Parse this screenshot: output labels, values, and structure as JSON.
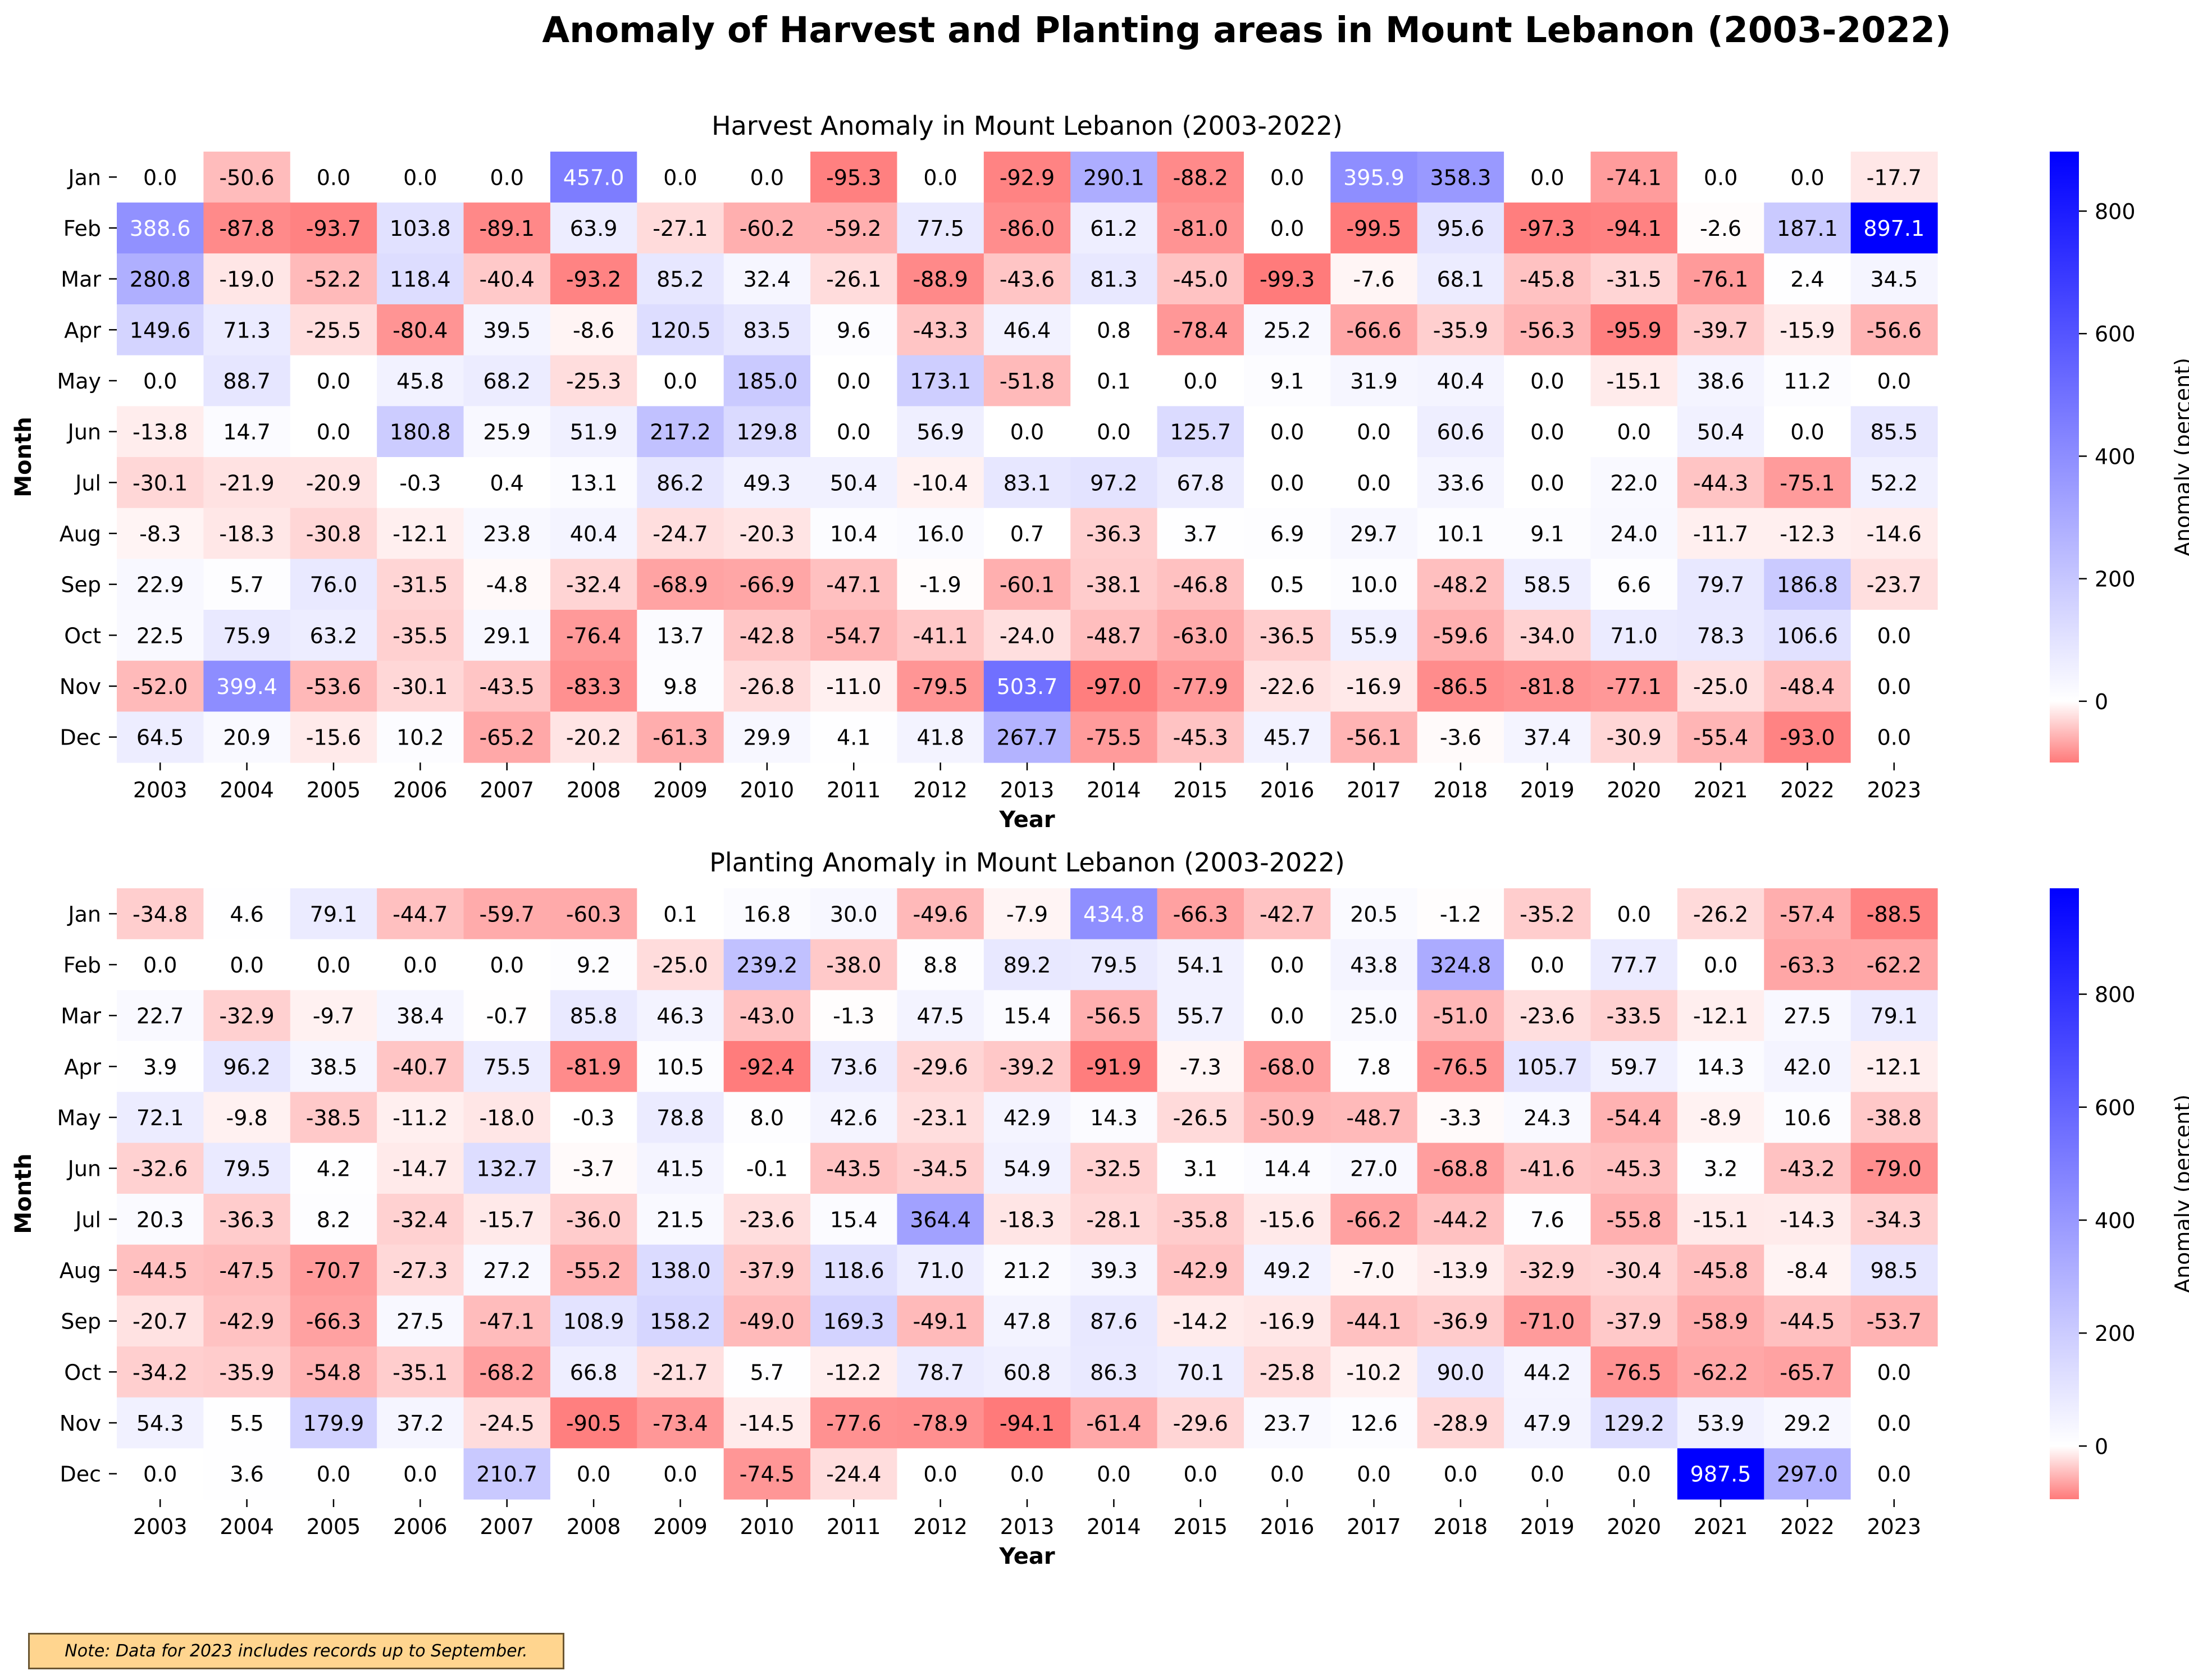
{
  "figure_title": "Anomaly of Harvest and Planting areas in Mount Lebanon (2003-2022)",
  "note": "Note: Data for 2023 includes records up to September.",
  "colors": {
    "negative": "#ff7a7a",
    "zero": "#ffffff",
    "positive": "#0000ff",
    "text_dark": "#000000",
    "text_light": "#ffffff"
  },
  "chart_data": [
    {
      "type": "heatmap",
      "title": "Harvest Anomaly in Mount Lebanon (2003-2022)",
      "xlabel": "Year",
      "ylabel": "Month",
      "colorbar_label": "Anomaly (percent)",
      "colorbar_ticks": [
        0,
        200,
        400,
        600,
        800
      ],
      "vmin": -100,
      "vmax": 897.1,
      "x": [
        "2003",
        "2004",
        "2005",
        "2006",
        "2007",
        "2008",
        "2009",
        "2010",
        "2011",
        "2012",
        "2013",
        "2014",
        "2015",
        "2016",
        "2017",
        "2018",
        "2019",
        "2020",
        "2021",
        "2022",
        "2023"
      ],
      "y": [
        "Jan",
        "Feb",
        "Mar",
        "Apr",
        "May",
        "Jun",
        "Jul",
        "Aug",
        "Sep",
        "Oct",
        "Nov",
        "Dec"
      ],
      "values": [
        [
          0.0,
          -50.6,
          0.0,
          0.0,
          0.0,
          457.0,
          0.0,
          0.0,
          -95.3,
          0.0,
          -92.9,
          290.1,
          -88.2,
          0.0,
          395.9,
          358.3,
          0.0,
          -74.1,
          0.0,
          0.0,
          -17.7
        ],
        [
          388.6,
          -87.8,
          -93.7,
          103.8,
          -89.1,
          63.9,
          -27.1,
          -60.2,
          -59.2,
          77.5,
          -86.0,
          61.2,
          -81.0,
          0.0,
          -99.5,
          95.6,
          -97.3,
          -94.1,
          -2.6,
          187.1,
          897.1
        ],
        [
          280.8,
          -19.0,
          -52.2,
          118.4,
          -40.4,
          -93.2,
          85.2,
          32.4,
          -26.1,
          -88.9,
          -43.6,
          81.3,
          -45.0,
          -99.3,
          -7.6,
          68.1,
          -45.8,
          -31.5,
          -76.1,
          2.4,
          34.5
        ],
        [
          149.6,
          71.3,
          -25.5,
          -80.4,
          39.5,
          -8.6,
          120.5,
          83.5,
          9.6,
          -43.3,
          46.4,
          0.8,
          -78.4,
          25.2,
          -66.6,
          -35.9,
          -56.3,
          -95.9,
          -39.7,
          -15.9,
          -56.6
        ],
        [
          0.0,
          88.7,
          0.0,
          45.8,
          68.2,
          -25.3,
          0.0,
          185.0,
          0.0,
          173.1,
          -51.8,
          0.1,
          0.0,
          9.1,
          31.9,
          40.4,
          0.0,
          -15.1,
          38.6,
          11.2,
          0.0
        ],
        [
          -13.8,
          14.7,
          0.0,
          180.8,
          25.9,
          51.9,
          217.2,
          129.8,
          0.0,
          56.9,
          0.0,
          0.0,
          125.7,
          0.0,
          0.0,
          60.6,
          0.0,
          0.0,
          50.4,
          0.0,
          85.5
        ],
        [
          -30.1,
          -21.9,
          -20.9,
          -0.3,
          0.4,
          13.1,
          86.2,
          49.3,
          50.4,
          -10.4,
          83.1,
          97.2,
          67.8,
          0.0,
          0.0,
          33.6,
          0.0,
          22.0,
          -44.3,
          -75.1,
          52.2
        ],
        [
          -8.3,
          -18.3,
          -30.8,
          -12.1,
          23.8,
          40.4,
          -24.7,
          -20.3,
          10.4,
          16.0,
          0.7,
          -36.3,
          3.7,
          6.9,
          29.7,
          10.1,
          9.1,
          24.0,
          -11.7,
          -12.3,
          -14.6
        ],
        [
          22.9,
          5.7,
          76.0,
          -31.5,
          -4.8,
          -32.4,
          -68.9,
          -66.9,
          -47.1,
          -1.9,
          -60.1,
          -38.1,
          -46.8,
          0.5,
          10.0,
          -48.2,
          58.5,
          6.6,
          79.7,
          186.8,
          -23.7
        ],
        [
          22.5,
          75.9,
          63.2,
          -35.5,
          29.1,
          -76.4,
          13.7,
          -42.8,
          -54.7,
          -41.1,
          -24.0,
          -48.7,
          -63.0,
          -36.5,
          55.9,
          -59.6,
          -34.0,
          71.0,
          78.3,
          106.6,
          0.0
        ],
        [
          -52.0,
          399.4,
          -53.6,
          -30.1,
          -43.5,
          -83.3,
          9.8,
          -26.8,
          -11.0,
          -79.5,
          503.7,
          -97.0,
          -77.9,
          -22.6,
          -16.9,
          -86.5,
          -81.8,
          -77.1,
          -25.0,
          -48.4,
          0.0
        ],
        [
          64.5,
          20.9,
          -15.6,
          10.2,
          -65.2,
          -20.2,
          -61.3,
          29.9,
          4.1,
          41.8,
          267.7,
          -75.5,
          -45.3,
          45.7,
          -56.1,
          -3.6,
          37.4,
          -30.9,
          -55.4,
          -93.0,
          0.0
        ]
      ]
    },
    {
      "type": "heatmap",
      "title": "Planting Anomaly in Mount Lebanon (2003-2022)",
      "xlabel": "Year",
      "ylabel": "Month",
      "colorbar_label": "Anomaly (percent)",
      "colorbar_ticks": [
        0,
        200,
        400,
        600,
        800
      ],
      "vmin": -94.1,
      "vmax": 987.5,
      "x": [
        "2003",
        "2004",
        "2005",
        "2006",
        "2007",
        "2008",
        "2009",
        "2010",
        "2011",
        "2012",
        "2013",
        "2014",
        "2015",
        "2016",
        "2017",
        "2018",
        "2019",
        "2020",
        "2021",
        "2022",
        "2023"
      ],
      "y": [
        "Jan",
        "Feb",
        "Mar",
        "Apr",
        "May",
        "Jun",
        "Jul",
        "Aug",
        "Sep",
        "Oct",
        "Nov",
        "Dec"
      ],
      "values": [
        [
          -34.8,
          4.6,
          79.1,
          -44.7,
          -59.7,
          -60.3,
          0.1,
          16.8,
          30.0,
          -49.6,
          -7.9,
          434.8,
          -66.3,
          -42.7,
          20.5,
          -1.2,
          -35.2,
          0.0,
          -26.2,
          -57.4,
          -88.5
        ],
        [
          0.0,
          0.0,
          0.0,
          0.0,
          0.0,
          9.2,
          -25.0,
          239.2,
          -38.0,
          8.8,
          89.2,
          79.5,
          54.1,
          0.0,
          43.8,
          324.8,
          0.0,
          77.7,
          0.0,
          -63.3,
          -62.2
        ],
        [
          22.7,
          -32.9,
          -9.7,
          38.4,
          -0.7,
          85.8,
          46.3,
          -43.0,
          -1.3,
          47.5,
          15.4,
          -56.5,
          55.7,
          0.0,
          25.0,
          -51.0,
          -23.6,
          -33.5,
          -12.1,
          27.5,
          79.1
        ],
        [
          3.9,
          96.2,
          38.5,
          -40.7,
          75.5,
          -81.9,
          10.5,
          -92.4,
          73.6,
          -29.6,
          -39.2,
          -91.9,
          -7.3,
          -68.0,
          7.8,
          -76.5,
          105.7,
          59.7,
          14.3,
          42.0,
          -12.1
        ],
        [
          72.1,
          -9.8,
          -38.5,
          -11.2,
          -18.0,
          -0.3,
          78.8,
          8.0,
          42.6,
          -23.1,
          42.9,
          14.3,
          -26.5,
          -50.9,
          -48.7,
          -3.3,
          24.3,
          -54.4,
          -8.9,
          10.6,
          -38.8
        ],
        [
          -32.6,
          79.5,
          4.2,
          -14.7,
          132.7,
          -3.7,
          41.5,
          -0.1,
          -43.5,
          -34.5,
          54.9,
          -32.5,
          3.1,
          14.4,
          27.0,
          -68.8,
          -41.6,
          -45.3,
          3.2,
          -43.2,
          -79.0
        ],
        [
          20.3,
          -36.3,
          8.2,
          -32.4,
          -15.7,
          -36.0,
          21.5,
          -23.6,
          15.4,
          364.4,
          -18.3,
          -28.1,
          -35.8,
          -15.6,
          -66.2,
          -44.2,
          7.6,
          -55.8,
          -15.1,
          -14.3,
          -34.3
        ],
        [
          -44.5,
          -47.5,
          -70.7,
          -27.3,
          27.2,
          -55.2,
          138.0,
          -37.9,
          118.6,
          71.0,
          21.2,
          39.3,
          -42.9,
          49.2,
          -7.0,
          -13.9,
          -32.9,
          -30.4,
          -45.8,
          -8.4,
          98.5
        ],
        [
          -20.7,
          -42.9,
          -66.3,
          27.5,
          -47.1,
          108.9,
          158.2,
          -49.0,
          169.3,
          -49.1,
          47.8,
          87.6,
          -14.2,
          -16.9,
          -44.1,
          -36.9,
          -71.0,
          -37.9,
          -58.9,
          -44.5,
          -53.7
        ],
        [
          -34.2,
          -35.9,
          -54.8,
          -35.1,
          -68.2,
          66.8,
          -21.7,
          5.7,
          -12.2,
          78.7,
          60.8,
          86.3,
          70.1,
          -25.8,
          -10.2,
          90.0,
          44.2,
          -76.5,
          -62.2,
          -65.7,
          0.0
        ],
        [
          54.3,
          5.5,
          179.9,
          37.2,
          -24.5,
          -90.5,
          -73.4,
          -14.5,
          -77.6,
          -78.9,
          -94.1,
          -61.4,
          -29.6,
          23.7,
          12.6,
          -28.9,
          47.9,
          129.2,
          53.9,
          29.2,
          0.0
        ],
        [
          0.0,
          3.6,
          0.0,
          0.0,
          210.7,
          0.0,
          0.0,
          -74.5,
          -24.4,
          0.0,
          0.0,
          0.0,
          0.0,
          0.0,
          0.0,
          0.0,
          0.0,
          0.0,
          987.5,
          297.0,
          0.0
        ]
      ]
    }
  ]
}
